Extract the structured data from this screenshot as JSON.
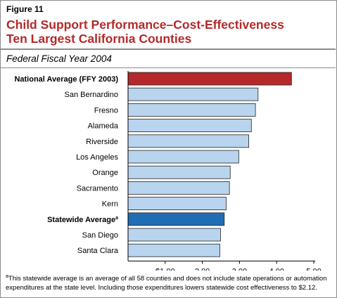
{
  "figure_label": "Figure 11",
  "title_lines": [
    "Child Support Performance–Cost-Effectiveness",
    "Ten Largest California Counties"
  ],
  "subtitle": "Federal Fiscal Year 2004",
  "footnote": {
    "marker": "a",
    "text": "This statewide average is an average of all 58 counties and does not include state operations or automation expenditures at the state level. Including those expenditures lowers statewide cost effectiveness to $2.12."
  },
  "colors": {
    "title": "#b5292a",
    "national_bar": "#b5292a",
    "statewide_bar": "#1f6db5",
    "county_bar": "#b9d4ee",
    "bar_outline": "#222222"
  },
  "chart_data": {
    "type": "bar",
    "orientation": "horizontal",
    "xlim": [
      0,
      5
    ],
    "xticks": [
      1,
      2,
      3,
      4,
      5
    ],
    "xtick_labels": [
      "$1.00",
      "2.00",
      "3.00",
      "4.00",
      "5.00"
    ],
    "grid": false,
    "categories": [
      {
        "label": "National Average (FFY 2003)",
        "value": 4.4,
        "kind": "national",
        "bold": true,
        "sup": ""
      },
      {
        "label": "San Bernardino",
        "value": 3.5,
        "kind": "county",
        "bold": false,
        "sup": ""
      },
      {
        "label": "Fresno",
        "value": 3.43,
        "kind": "county",
        "bold": false,
        "sup": ""
      },
      {
        "label": "Alameda",
        "value": 3.32,
        "kind": "county",
        "bold": false,
        "sup": ""
      },
      {
        "label": "Riverside",
        "value": 3.25,
        "kind": "county",
        "bold": false,
        "sup": ""
      },
      {
        "label": "Los Angeles",
        "value": 2.98,
        "kind": "county",
        "bold": false,
        "sup": ""
      },
      {
        "label": "Orange",
        "value": 2.75,
        "kind": "county",
        "bold": false,
        "sup": ""
      },
      {
        "label": "Sacramento",
        "value": 2.73,
        "kind": "county",
        "bold": false,
        "sup": ""
      },
      {
        "label": "Kern",
        "value": 2.64,
        "kind": "county",
        "bold": false,
        "sup": ""
      },
      {
        "label": "Statewide Average",
        "value": 2.59,
        "kind": "statewide",
        "bold": true,
        "sup": "a"
      },
      {
        "label": "San Diego",
        "value": 2.49,
        "kind": "county",
        "bold": false,
        "sup": ""
      },
      {
        "label": "Santa Clara",
        "value": 2.47,
        "kind": "county",
        "bold": false,
        "sup": ""
      }
    ]
  }
}
